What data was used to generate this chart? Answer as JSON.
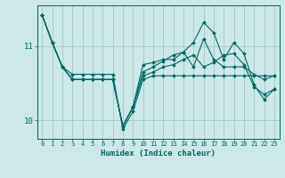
{
  "xlabel": "Humidex (Indice chaleur)",
  "bg_color": "#cce8e8",
  "grid_color": "#aacccc",
  "line_color": "#006666",
  "xlim": [
    -0.5,
    23.5
  ],
  "ylim": [
    9.75,
    11.55
  ],
  "yticks": [
    10,
    11
  ],
  "xticks": [
    0,
    1,
    2,
    3,
    4,
    5,
    6,
    7,
    8,
    9,
    10,
    11,
    12,
    13,
    14,
    15,
    16,
    17,
    18,
    19,
    20,
    21,
    22,
    23
  ],
  "lines": [
    [
      11.42,
      11.05,
      10.72,
      10.62,
      10.62,
      10.62,
      10.62,
      10.62,
      9.88,
      10.12,
      10.55,
      10.6,
      10.6,
      10.6,
      10.6,
      10.6,
      10.6,
      10.6,
      10.6,
      10.6,
      10.6,
      10.6,
      10.6,
      10.6
    ],
    [
      11.42,
      11.05,
      10.72,
      10.55,
      10.55,
      10.55,
      10.55,
      10.55,
      9.92,
      10.18,
      10.6,
      10.65,
      10.72,
      10.75,
      10.82,
      10.88,
      10.72,
      10.78,
      10.88,
      10.9,
      10.75,
      10.45,
      10.35,
      10.42
    ],
    [
      11.42,
      11.05,
      10.72,
      10.55,
      10.55,
      10.55,
      10.55,
      10.55,
      9.92,
      10.18,
      10.75,
      10.78,
      10.82,
      10.82,
      10.92,
      11.05,
      11.32,
      11.18,
      10.82,
      11.05,
      10.9,
      10.48,
      10.28,
      10.42
    ],
    [
      11.42,
      11.05,
      10.72,
      10.55,
      10.55,
      10.55,
      10.55,
      10.55,
      9.92,
      10.18,
      10.65,
      10.72,
      10.8,
      10.88,
      10.92,
      10.72,
      11.1,
      10.82,
      10.72,
      10.72,
      10.72,
      10.62,
      10.55,
      10.6
    ]
  ]
}
